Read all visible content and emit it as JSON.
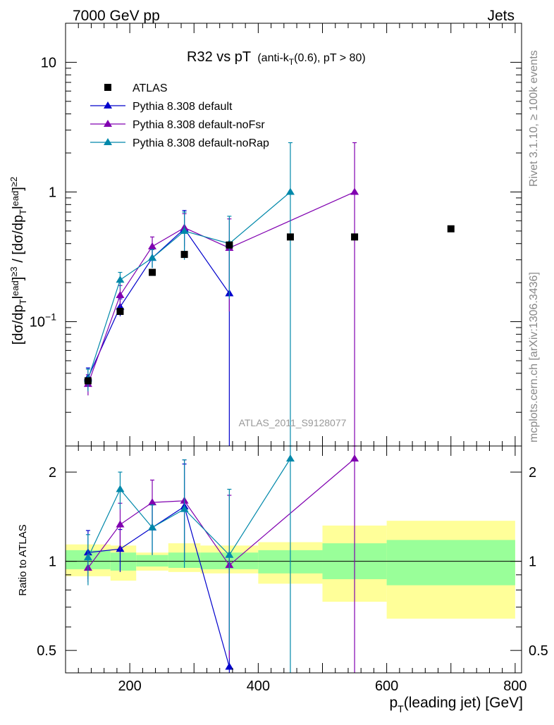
{
  "chart_data": {
    "type": "scatter",
    "header_left": "7000 GeV pp",
    "header_right": "Jets",
    "title": "R32 vs pT",
    "title_sub": "(anti-k_T(0.6), pT > 80)",
    "analysis_label": "ATLAS_2011_S9128077",
    "side_label_top": "Rivet 3.1.10, ≥ 100k events",
    "side_label_bottom": "mcplots.cern.ch [arXiv:1306.3436]",
    "ylabel": "[dσ/dp_Tlead]^≥3 / [dσ/dp_Tlead]^≥2",
    "ratio_ylabel": "Ratio to ATLAS",
    "xlabel": "p_T(leading jet) [GeV]",
    "xlim": [
      100,
      810
    ],
    "ylim_log": [
      0.011,
      20
    ],
    "ratio_ylim_log": [
      0.42,
      2.45
    ],
    "x_ticks": [
      200,
      400,
      600,
      800
    ],
    "y_tick_labels": [
      "10^-1",
      "1",
      "10"
    ],
    "ratio_tick_labels": [
      "0.5",
      "1",
      "2"
    ],
    "legend_position": "top-left",
    "reference": {
      "name": "ATLAS",
      "x": [
        135,
        185,
        235,
        285,
        355,
        450,
        550,
        700
      ],
      "y": [
        0.035,
        0.12,
        0.24,
        0.33,
        0.39,
        0.45,
        0.45,
        0.52
      ]
    },
    "uncertainty_bands": [
      {
        "x_lo": 100,
        "x_hi": 170,
        "green": [
          0.94,
          1.09
        ],
        "yellow": [
          0.89,
          1.14
        ]
      },
      {
        "x_lo": 170,
        "x_hi": 210,
        "green": [
          0.93,
          1.07
        ],
        "yellow": [
          0.86,
          1.13
        ]
      },
      {
        "x_lo": 210,
        "x_hi": 260,
        "green": [
          0.96,
          1.05
        ],
        "yellow": [
          0.93,
          1.07
        ]
      },
      {
        "x_lo": 260,
        "x_hi": 310,
        "green": [
          0.95,
          1.07
        ],
        "yellow": [
          0.92,
          1.15
        ]
      },
      {
        "x_lo": 310,
        "x_hi": 400,
        "green": [
          0.94,
          1.07
        ],
        "yellow": [
          0.91,
          1.13
        ]
      },
      {
        "x_lo": 400,
        "x_hi": 500,
        "green": [
          0.91,
          1.09
        ],
        "yellow": [
          0.84,
          1.16
        ]
      },
      {
        "x_lo": 500,
        "x_hi": 600,
        "green": [
          0.87,
          1.15
        ],
        "yellow": [
          0.73,
          1.32
        ]
      },
      {
        "x_lo": 600,
        "x_hi": 800,
        "green": [
          0.83,
          1.18
        ],
        "yellow": [
          0.64,
          1.37
        ]
      }
    ],
    "series": [
      {
        "name": "Pythia 8.308 default",
        "color": "#0000cc",
        "x": [
          135,
          185,
          235,
          285,
          355
        ],
        "y": [
          0.037,
          0.13,
          0.31,
          0.52,
          0.165
        ],
        "yerr_lo": [
          0.007,
          0.02,
          0.05,
          0.18,
          0.165
        ],
        "yerr_hi": [
          0.007,
          0.02,
          0.05,
          0.2,
          0.2
        ],
        "ratio": [
          1.07,
          1.1,
          1.3,
          1.53,
          0.44
        ],
        "ratio_err_lo": [
          0.2,
          0.18,
          0.25,
          0.53,
          0.44
        ],
        "ratio_err_hi": [
          0.2,
          0.18,
          0.25,
          0.6,
          0.6
        ]
      },
      {
        "name": "Pythia 8.308 default-noFsr",
        "color": "#8000b0",
        "x": [
          135,
          185,
          235,
          285,
          355,
          550
        ],
        "y": [
          0.033,
          0.16,
          0.38,
          0.53,
          0.37,
          1.0
        ],
        "yerr_lo": [
          0.006,
          0.03,
          0.07,
          0.15,
          0.25,
          1.0
        ],
        "yerr_hi": [
          0.006,
          0.03,
          0.07,
          0.15,
          0.25,
          1.4
        ],
        "ratio": [
          0.95,
          1.33,
          1.58,
          1.6,
          0.97,
          2.22
        ],
        "ratio_err_lo": [
          0.1,
          0.24,
          0.3,
          0.6,
          0.5,
          2.22
        ],
        "ratio_err_hi": [
          0.1,
          0.24,
          0.3,
          0.6,
          0.7,
          2.22
        ]
      },
      {
        "name": "Pythia 8.308 default-noRap",
        "color": "#0088aa",
        "x": [
          135,
          185,
          235,
          285,
          355,
          450
        ],
        "y": [
          0.036,
          0.21,
          0.31,
          0.5,
          0.4,
          1.0
        ],
        "yerr_lo": [
          0.007,
          0.03,
          0.05,
          0.2,
          0.25,
          1.0
        ],
        "yerr_hi": [
          0.007,
          0.03,
          0.05,
          0.2,
          0.25,
          1.4
        ],
        "ratio": [
          1.03,
          1.75,
          1.3,
          1.5,
          1.05,
          2.22
        ],
        "ratio_err_lo": [
          0.2,
          0.25,
          0.25,
          0.55,
          0.55,
          2.22
        ],
        "ratio_err_hi": [
          0.2,
          0.25,
          0.25,
          0.7,
          0.7,
          2.22
        ]
      }
    ]
  }
}
